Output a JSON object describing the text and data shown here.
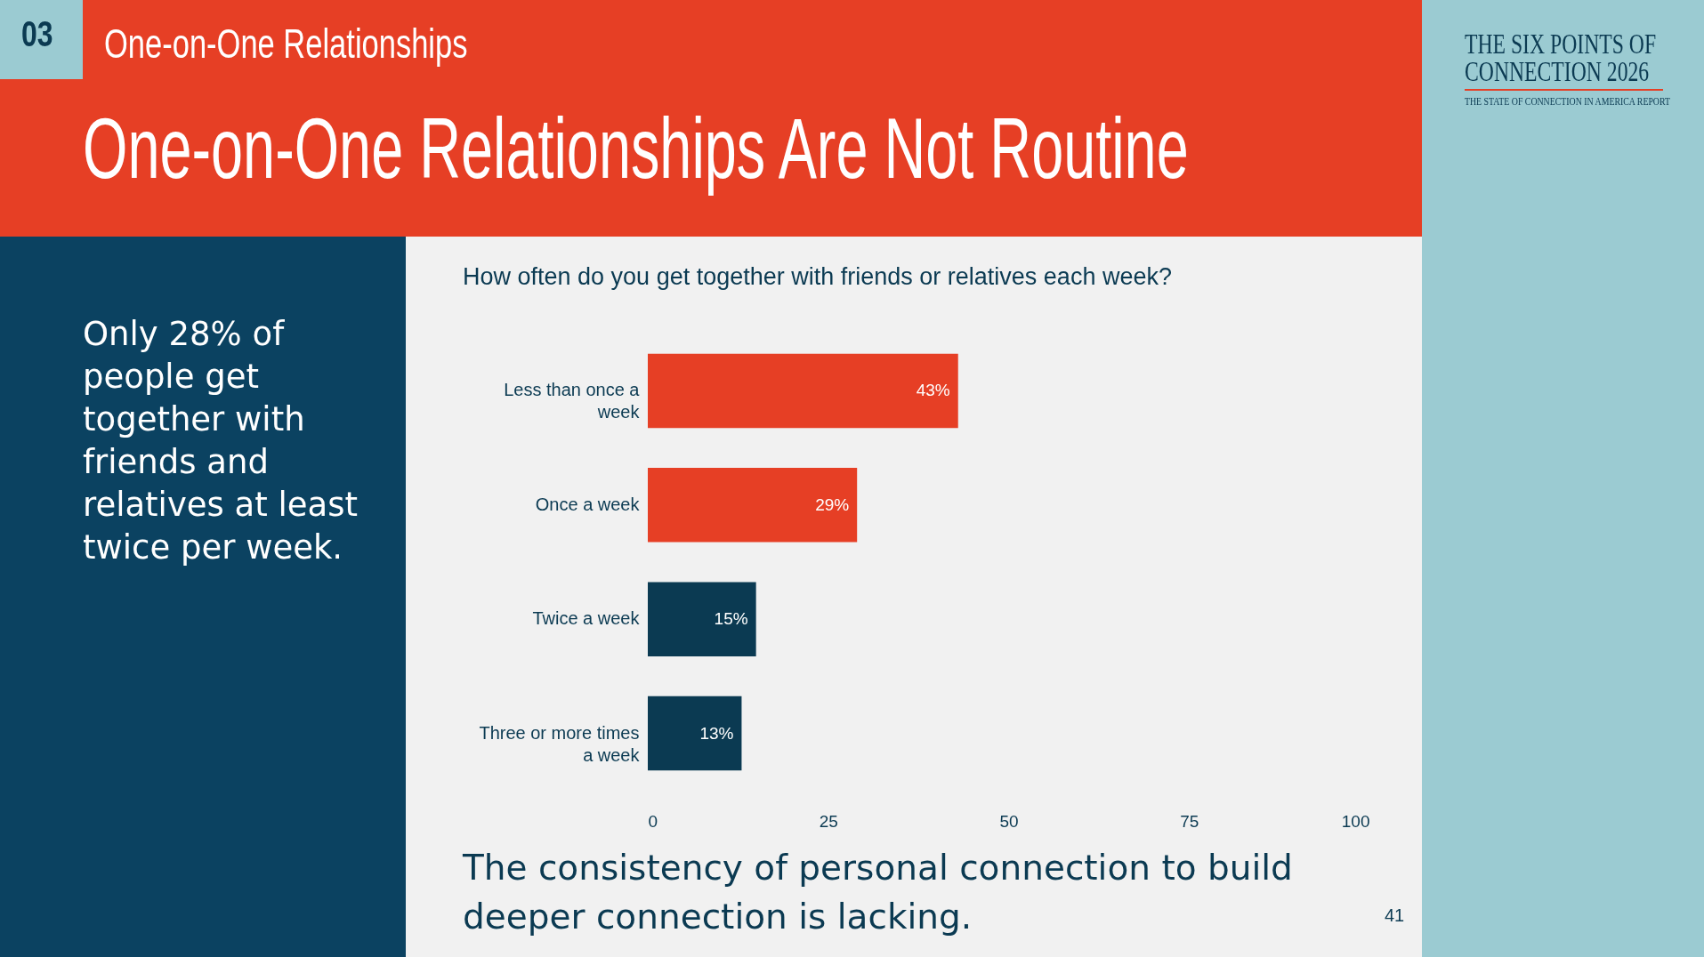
{
  "chart_data": {
    "type": "bar",
    "orientation": "horizontal",
    "title": "One-on-One Relationships Are Not Routine",
    "subtitle": "How often do you get together with friends or relatives each week?",
    "categories": [
      "Less than once a week",
      "Once a week",
      "Twice a week",
      "Three or more times a week"
    ],
    "values": [
      43,
      29,
      15,
      13
    ],
    "value_labels": [
      "43%",
      "29%",
      "15%",
      "13%"
    ],
    "colors": [
      "#e63f25",
      "#e63f25",
      "#0b3a52",
      "#0b3a52"
    ],
    "xlim": [
      0,
      100
    ],
    "xticks": [
      0,
      25,
      50,
      75,
      100
    ],
    "grid": false,
    "annotations": [
      "03",
      "One-on-One Relationships",
      "Only 28% of people get together with friends and relatives at least twice per week.",
      "The consistency of personal connection to build deeper connection is lacking.",
      "41",
      "THE SIX POINTS OF CONNECTION 2026",
      "THE STATE OF CONNECTION IN AMERICA REPORT"
    ]
  }
}
